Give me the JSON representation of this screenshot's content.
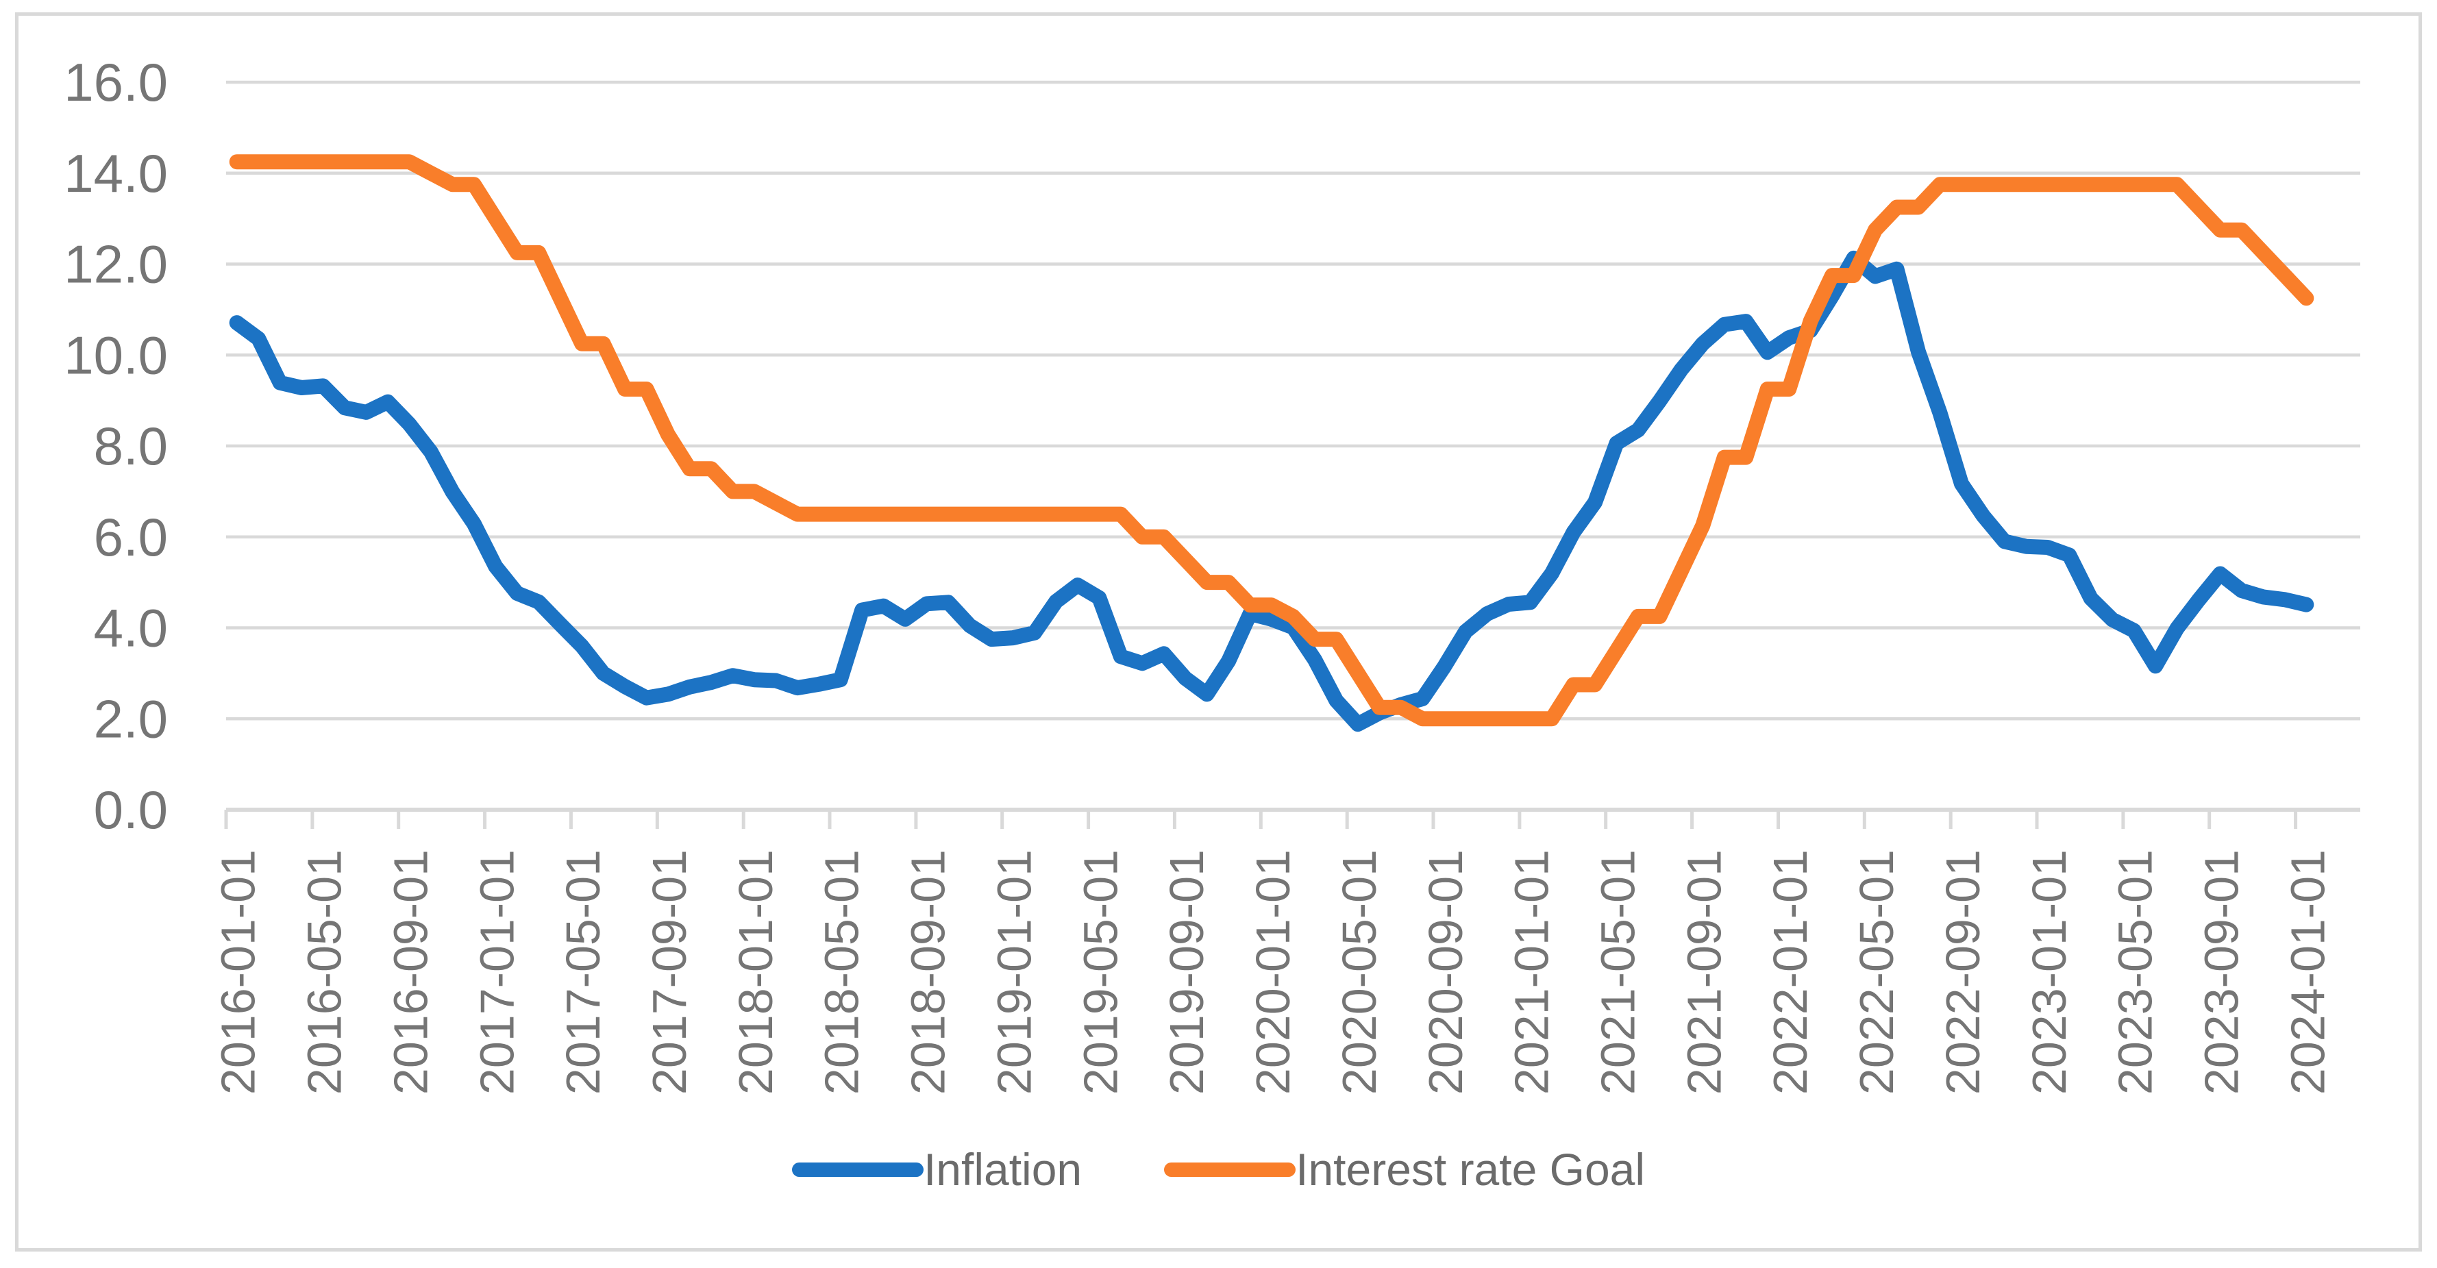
{
  "chart_data": {
    "type": "line",
    "title": "",
    "x": [
      "2016-01-01",
      "2016-02-01",
      "2016-03-01",
      "2016-04-01",
      "2016-05-01",
      "2016-06-01",
      "2016-07-01",
      "2016-08-01",
      "2016-09-01",
      "2016-10-01",
      "2016-11-01",
      "2016-12-01",
      "2017-01-01",
      "2017-02-01",
      "2017-03-01",
      "2017-04-01",
      "2017-05-01",
      "2017-06-01",
      "2017-07-01",
      "2017-08-01",
      "2017-09-01",
      "2017-10-01",
      "2017-11-01",
      "2017-12-01",
      "2018-01-01",
      "2018-02-01",
      "2018-03-01",
      "2018-04-01",
      "2018-05-01",
      "2018-06-01",
      "2018-07-01",
      "2018-08-01",
      "2018-09-01",
      "2018-10-01",
      "2018-11-01",
      "2018-12-01",
      "2019-01-01",
      "2019-02-01",
      "2019-03-01",
      "2019-04-01",
      "2019-05-01",
      "2019-06-01",
      "2019-07-01",
      "2019-08-01",
      "2019-09-01",
      "2019-10-01",
      "2019-11-01",
      "2019-12-01",
      "2020-01-01",
      "2020-02-01",
      "2020-03-01",
      "2020-04-01",
      "2020-05-01",
      "2020-06-01",
      "2020-07-01",
      "2020-08-01",
      "2020-09-01",
      "2020-10-01",
      "2020-11-01",
      "2020-12-01",
      "2021-01-01",
      "2021-02-01",
      "2021-03-01",
      "2021-04-01",
      "2021-05-01",
      "2021-06-01",
      "2021-07-01",
      "2021-08-01",
      "2021-09-01",
      "2021-10-01",
      "2021-11-01",
      "2021-12-01",
      "2022-01-01",
      "2022-02-01",
      "2022-03-01",
      "2022-04-01",
      "2022-05-01",
      "2022-06-01",
      "2022-07-01",
      "2022-08-01",
      "2022-09-01",
      "2022-10-01",
      "2022-11-01",
      "2022-12-01",
      "2023-01-01",
      "2023-02-01",
      "2023-03-01",
      "2023-04-01",
      "2023-05-01",
      "2023-06-01",
      "2023-07-01",
      "2023-08-01",
      "2023-09-01",
      "2023-10-01",
      "2023-11-01",
      "2023-12-01",
      "2024-01-01"
    ],
    "series": [
      {
        "name": "Inflation",
        "color": "#1c73c4",
        "values": [
          10.71,
          10.36,
          9.39,
          9.28,
          9.32,
          8.84,
          8.74,
          8.97,
          8.48,
          7.87,
          6.99,
          6.29,
          5.35,
          4.76,
          4.57,
          4.08,
          3.6,
          3.0,
          2.71,
          2.46,
          2.54,
          2.7,
          2.8,
          2.95,
          2.86,
          2.84,
          2.68,
          2.76,
          2.86,
          4.39,
          4.48,
          4.19,
          4.53,
          4.56,
          4.05,
          3.75,
          3.78,
          3.89,
          4.58,
          4.94,
          4.66,
          3.37,
          3.22,
          3.43,
          2.89,
          2.54,
          3.27,
          4.31,
          4.19,
          4.01,
          3.3,
          2.4,
          1.88,
          2.13,
          2.31,
          2.44,
          3.14,
          3.92,
          4.31,
          4.52,
          4.56,
          5.2,
          6.1,
          6.76,
          8.06,
          8.35,
          8.99,
          9.68,
          10.25,
          10.67,
          10.74,
          10.06,
          10.38,
          10.54,
          11.3,
          12.13,
          11.73,
          11.89,
          10.07,
          8.73,
          7.17,
          6.47,
          5.9,
          5.79,
          5.77,
          5.6,
          4.65,
          4.18,
          3.94,
          3.16,
          3.99,
          4.61,
          5.19,
          4.82,
          4.68,
          4.62,
          4.51
        ]
      },
      {
        "name": "Interest rate Goal",
        "color": "#f97e2a",
        "values": [
          14.25,
          14.25,
          14.25,
          14.25,
          14.25,
          14.25,
          14.25,
          14.25,
          14.25,
          14.0,
          13.75,
          13.75,
          13.0,
          12.25,
          12.25,
          11.25,
          10.25,
          10.25,
          9.25,
          9.25,
          8.25,
          7.5,
          7.5,
          7.0,
          7.0,
          6.75,
          6.5,
          6.5,
          6.5,
          6.5,
          6.5,
          6.5,
          6.5,
          6.5,
          6.5,
          6.5,
          6.5,
          6.5,
          6.5,
          6.5,
          6.5,
          6.5,
          6.0,
          6.0,
          5.5,
          5.0,
          5.0,
          4.5,
          4.5,
          4.25,
          3.75,
          3.75,
          3.0,
          2.25,
          2.25,
          2.0,
          2.0,
          2.0,
          2.0,
          2.0,
          2.0,
          2.0,
          2.75,
          2.75,
          3.5,
          4.25,
          4.25,
          5.25,
          6.25,
          7.75,
          7.75,
          9.25,
          9.25,
          10.75,
          11.75,
          11.75,
          12.75,
          13.25,
          13.25,
          13.75,
          13.75,
          13.75,
          13.75,
          13.75,
          13.75,
          13.75,
          13.75,
          13.75,
          13.75,
          13.75,
          13.75,
          13.25,
          12.75,
          12.75,
          12.25,
          11.75,
          11.25
        ]
      }
    ],
    "y_axis": {
      "min": 0,
      "max": 16,
      "step": 2,
      "tick_labels": [
        "0.0",
        "2.0",
        "4.0",
        "6.0",
        "8.0",
        "10.0",
        "12.0",
        "14.0",
        "16.0"
      ]
    },
    "x_axis": {
      "tick_labels": [
        "2016-01-01",
        "2016-05-01",
        "2016-09-01",
        "2017-01-01",
        "2017-05-01",
        "2017-09-01",
        "2018-01-01",
        "2018-05-01",
        "2018-09-01",
        "2019-01-01",
        "2019-05-01",
        "2019-09-01",
        "2020-01-01",
        "2020-05-01",
        "2020-09-01",
        "2021-01-01",
        "2021-05-01",
        "2021-09-01",
        "2022-01-01",
        "2022-05-01",
        "2022-09-01",
        "2023-01-01",
        "2023-05-01",
        "2023-09-01",
        "2024-01-01"
      ]
    },
    "grid": true,
    "legend_position": "bottom",
    "colors": {
      "gridline": "#d9d9d9",
      "axis_line": "#d9d9d9",
      "tick_text": "#757575",
      "legend_text": "#6b6b6b",
      "frame_border": "#d9d9d9",
      "background": "#ffffff"
    }
  }
}
